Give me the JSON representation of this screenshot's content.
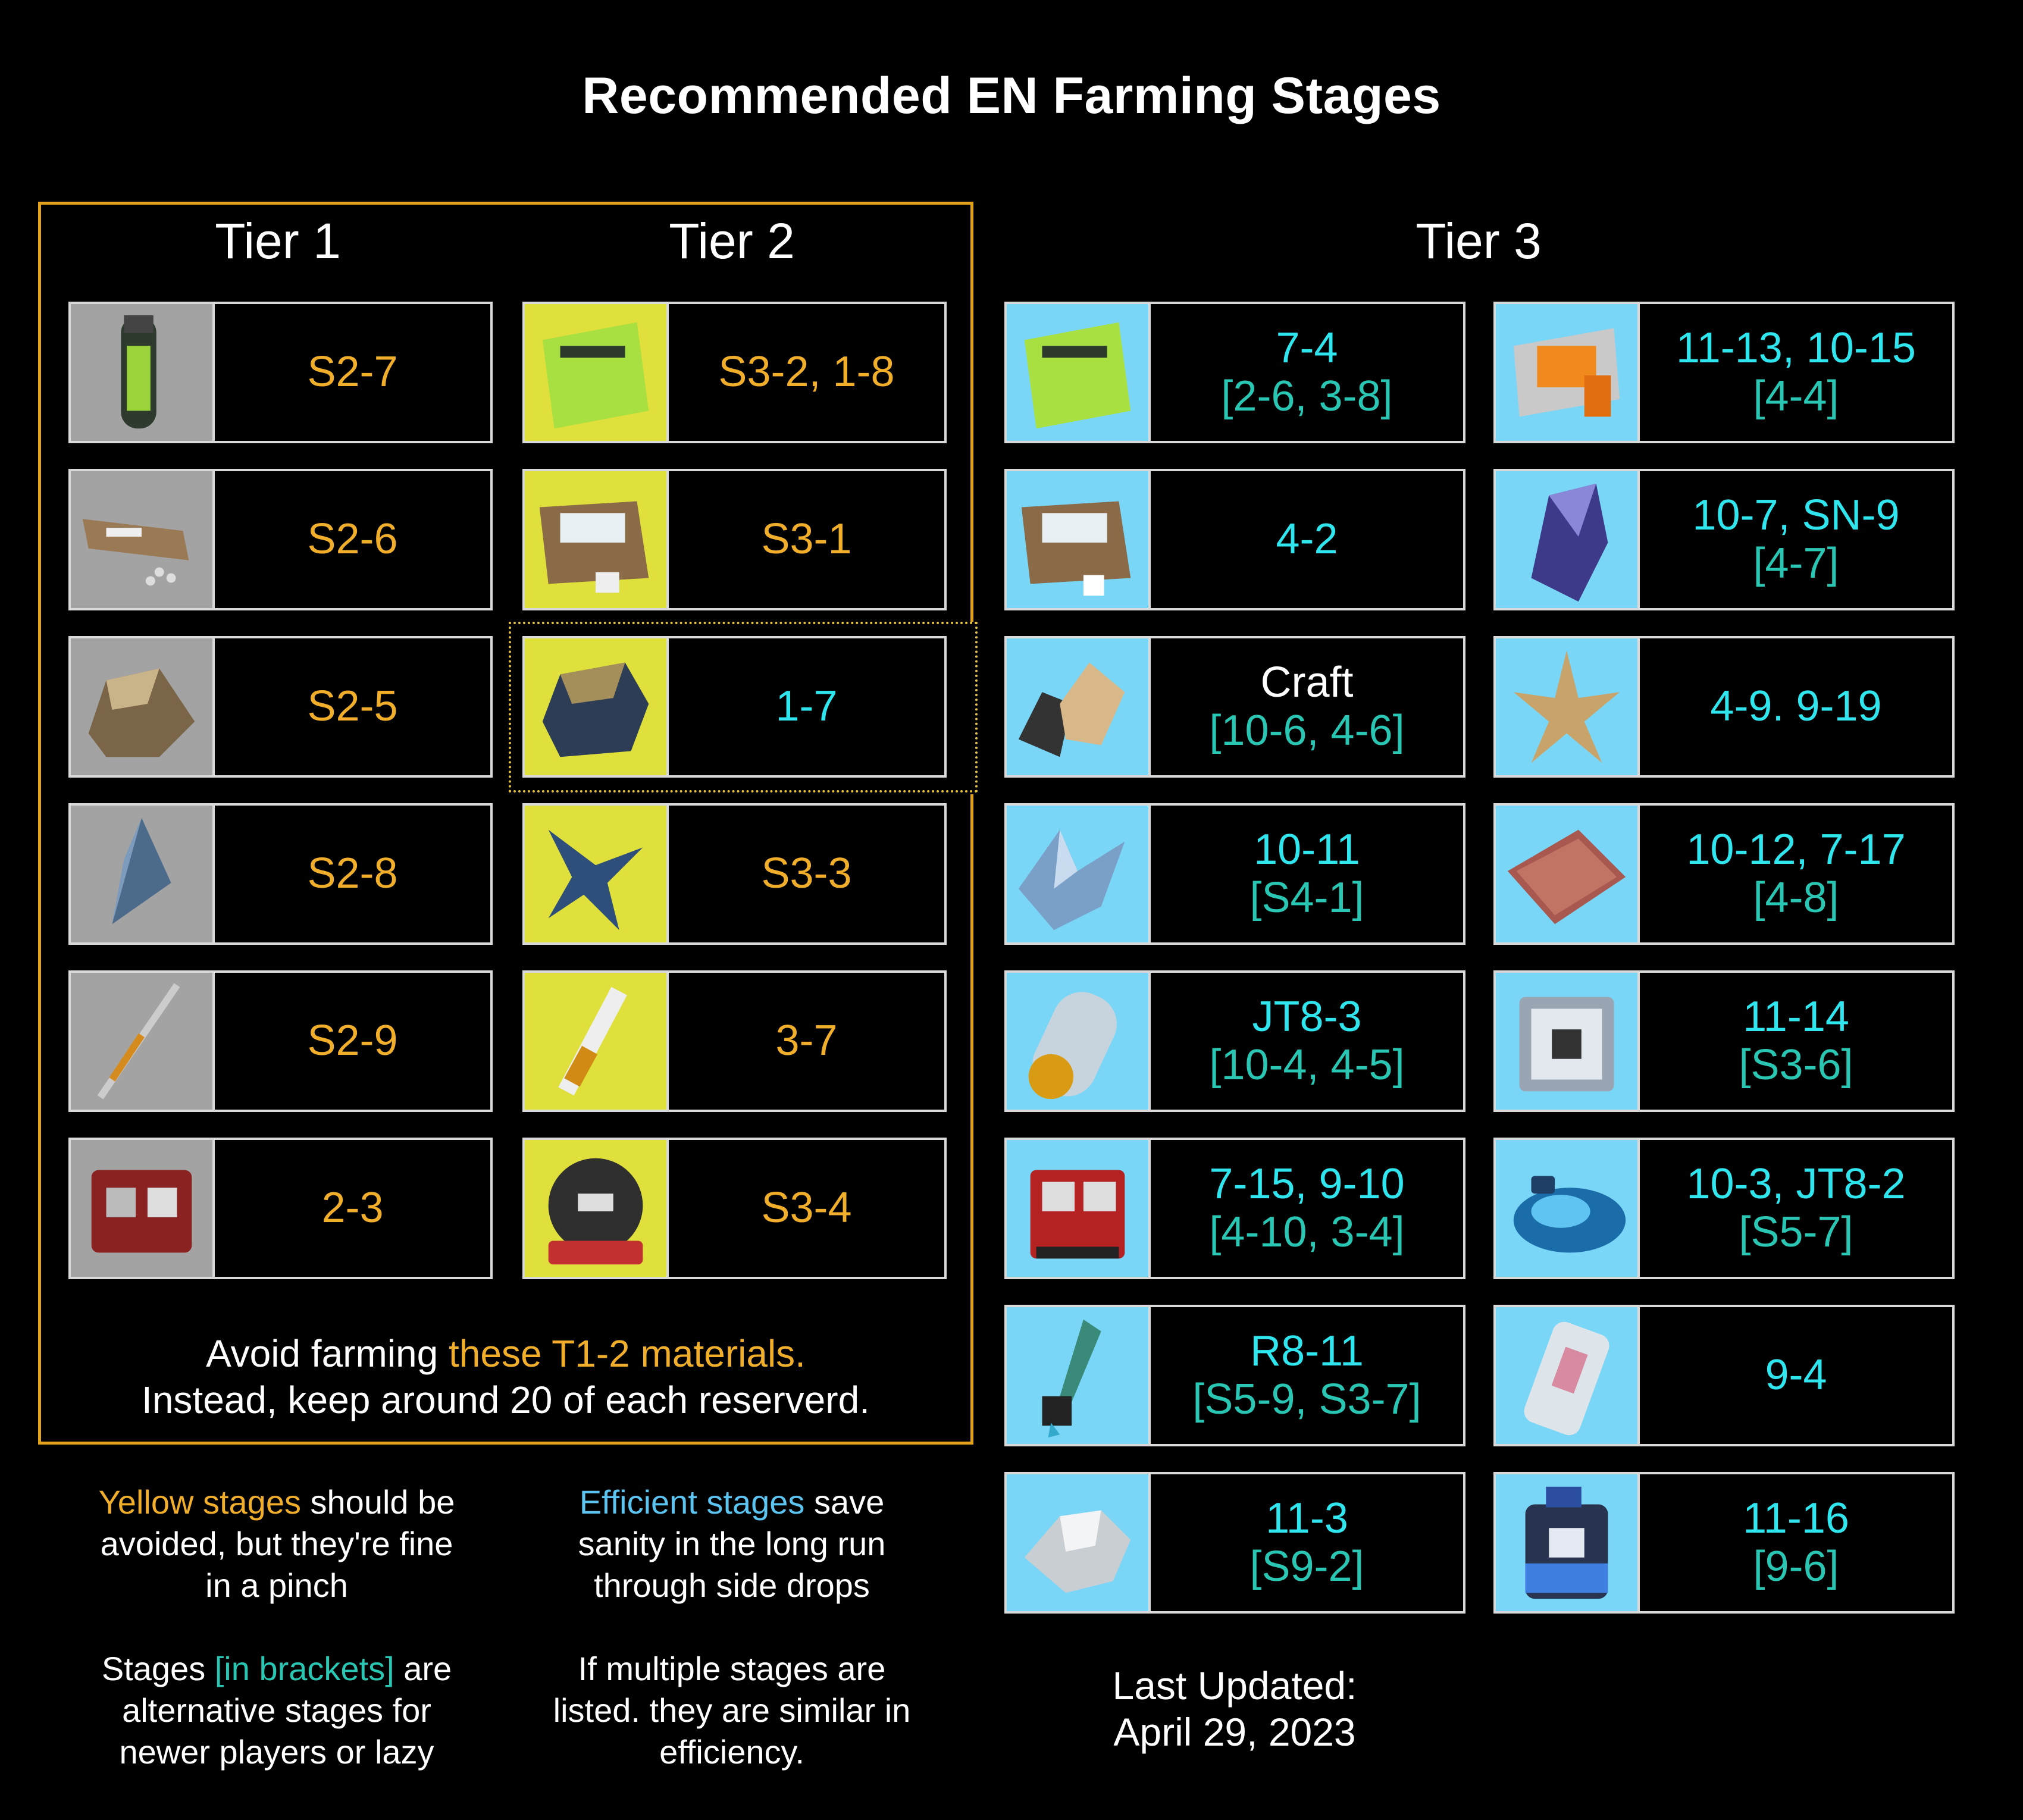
{
  "title": "Recommended EN Farming Stages",
  "tiers": {
    "t1": "Tier 1",
    "t2": "Tier 2",
    "t3": "Tier 3"
  },
  "tier1": [
    {
      "icon": "orirock-bottle-icon",
      "main": "S2-7"
    },
    {
      "icon": "sugar-pack-icon",
      "main": "S2-6"
    },
    {
      "icon": "orirock-cube-icon",
      "main": "S2-5"
    },
    {
      "icon": "polyketon-crystal-icon",
      "main": "S2-8"
    },
    {
      "icon": "oriron-rod-icon",
      "main": "S2-9"
    },
    {
      "icon": "device-icon",
      "main": "2-3"
    }
  ],
  "tier2": [
    {
      "icon": "green-pack-icon",
      "main": "S3-2, 1-8"
    },
    {
      "icon": "brown-pack-icon",
      "main": "S3-1"
    },
    {
      "icon": "orirock-cluster-icon",
      "main": "1-7"
    },
    {
      "icon": "oriron-star-icon",
      "main": "S3-3"
    },
    {
      "icon": "polyester-vial-icon",
      "main": "3-7"
    },
    {
      "icon": "round-device-icon",
      "main": "S3-4"
    }
  ],
  "tier3_left": [
    {
      "icon": "green-pack-icon",
      "main": "7-4",
      "alt": "[2-6, 3-8]"
    },
    {
      "icon": "sugar-box-icon",
      "main": "4-2",
      "alt": ""
    },
    {
      "icon": "orirock-group-icon",
      "main": "Craft",
      "alt": "[10-6, 4-6]"
    },
    {
      "icon": "oriron-cluster-icon",
      "main": "10-11",
      "alt": "[S4-1]"
    },
    {
      "icon": "ketone-capsule-icon",
      "main": "JT8-3",
      "alt": "[10-4, 4-5]"
    },
    {
      "icon": "red-device-icon",
      "main": "7-15, 9-10",
      "alt": "[4-10, 3-4]"
    },
    {
      "icon": "crystal-tube-icon",
      "main": "R8-11",
      "alt": "[S5-9, S3-7]"
    },
    {
      "icon": "silver-chunk-icon",
      "main": "11-3",
      "alt": "[S9-2]"
    }
  ],
  "tier3_right": [
    {
      "icon": "orange-pack-icon",
      "main": "11-13, 10-15",
      "alt": "[4-4]"
    },
    {
      "icon": "purple-crystal-icon",
      "main": "10-7, SN-9",
      "alt": "[4-7]"
    },
    {
      "icon": "gold-star-icon",
      "main": "4-9. 9-19",
      "alt": ""
    },
    {
      "icon": "copper-plate-icon",
      "main": "10-12, 7-17",
      "alt": "[4-8]"
    },
    {
      "icon": "metal-cube-icon",
      "main": "11-14",
      "alt": "[S3-6]"
    },
    {
      "icon": "blue-gel-icon",
      "main": "10-3, JT8-2",
      "alt": "[S5-7]"
    },
    {
      "icon": "glass-vial-icon",
      "main": "9-4",
      "alt": ""
    },
    {
      "icon": "blue-canister-icon",
      "main": "11-16",
      "alt": "[9-6]"
    }
  ],
  "avoid": {
    "pre": "Avoid farming ",
    "hl": "these T1-2 materials.",
    "line2": "Instead, keep around 20 of each reserverd."
  },
  "notes": {
    "yellow_hl": "Yellow stages",
    "yellow_rest1": " should be",
    "yellow_rest2": "avoided, but they're fine",
    "yellow_rest3": "in a pinch",
    "eff_hl": "Efficient stages",
    "eff_rest1": " save",
    "eff_rest2": "sanity in the long run",
    "eff_rest3": "through side drops",
    "br_pre": "Stages ",
    "br_hl": "[in brackets]",
    "br_rest1": " are",
    "br_rest2": "alternative stages for",
    "br_rest3": "newer players or lazy",
    "multi1": "If multiple stages are",
    "multi2": "listed. they are similar in",
    "multi3": "efficiency.",
    "updated1": "Last Updated:",
    "updated2": "April 29, 2023"
  },
  "colors": {
    "yellow_text": "#f0ae2b",
    "cyan_text": "#2fe6ef",
    "alt_text": "#29c7b3",
    "tier_box": "#e0a11b",
    "bg_gray": "#a3a3a3",
    "bg_yellow": "#dfe03c",
    "bg_blue": "#7ad6f7"
  }
}
